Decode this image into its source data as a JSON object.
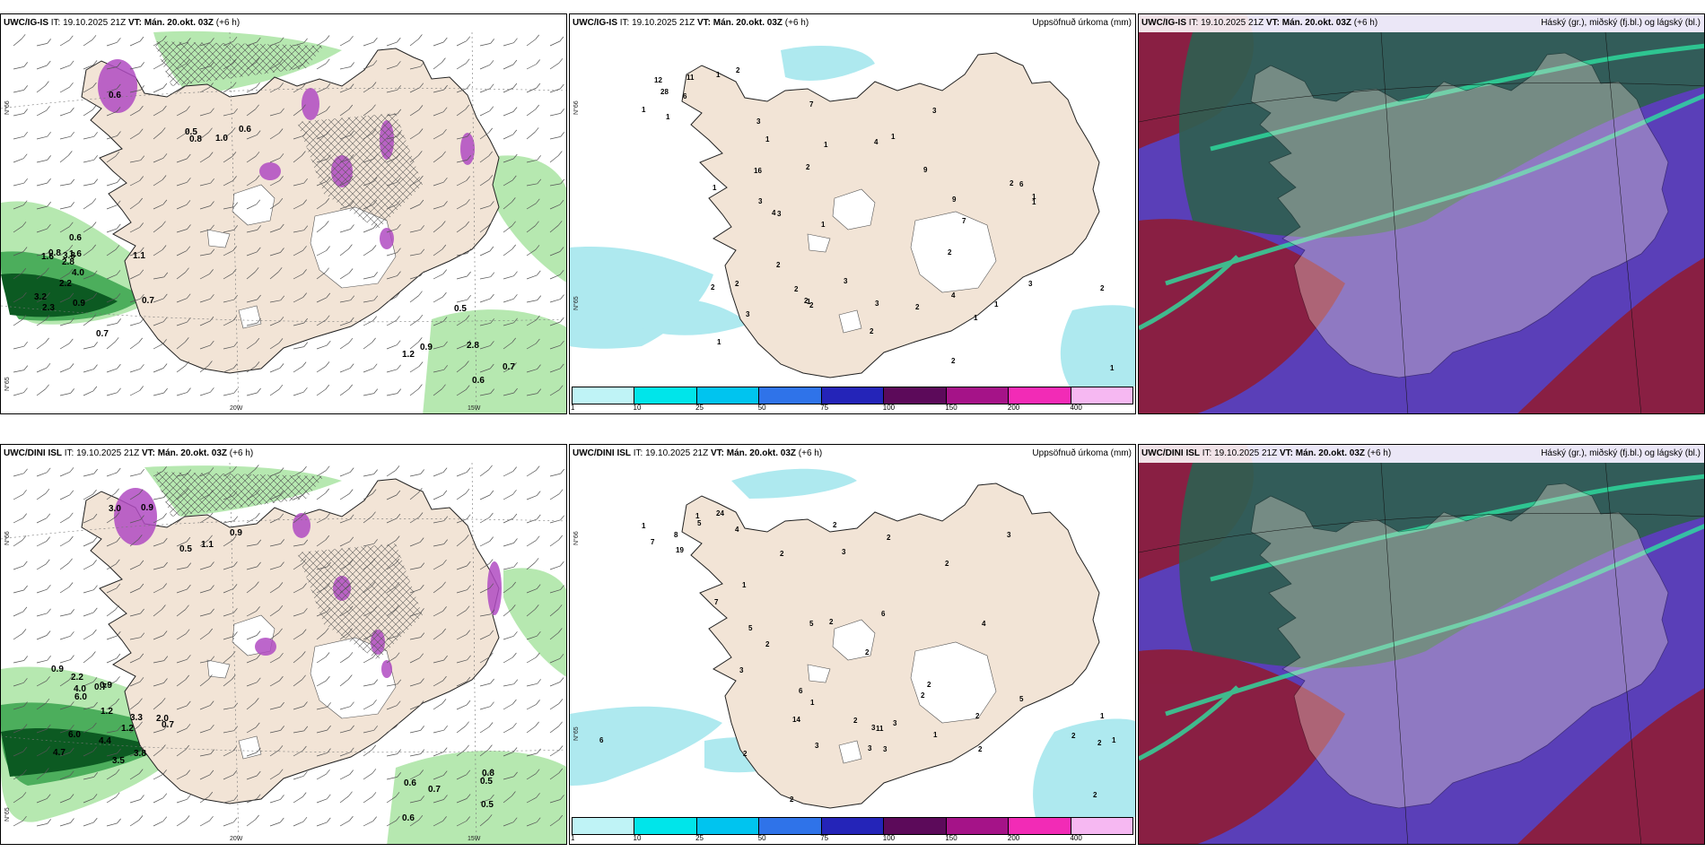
{
  "colors": {
    "land": "#f2e4d6",
    "precip_light": "#aee9ef",
    "precip_green_light": "#b6e8b0",
    "precip_green_mid": "#4cae5c",
    "precip_green_dark": "#0c5a22",
    "snow_purple": "#b04bc2",
    "cloud_high": "#2f5e50",
    "cloud_mid": "#5a3fb8",
    "cloud_low": "#8c1e3c"
  },
  "rows": [
    {
      "id": "ig",
      "panels": [
        {
          "kind": "wind",
          "model": "UWC/IG-IS",
          "it_label": "IT:",
          "it_value": "19.10.2025 21Z",
          "vt_label": "VT:",
          "vt_value": "Mán. 20.okt. 03Z",
          "lead": "(+6 h)",
          "right_title": "",
          "axis": {
            "lat1": "N°66",
            "lat2": "N°65",
            "lon1": "20W",
            "lon2": "15W"
          },
          "values": [
            "0.6",
            "0.8",
            "0.5",
            "0.6",
            "1.0",
            "2.3",
            "1.6",
            "4.0",
            "2.2",
            "1.6",
            "2.8",
            "3.2",
            "3.8",
            "1.1",
            "0.8",
            "0.6",
            "0.7",
            "0.9",
            "0.7",
            "0.5",
            "0.6",
            "2.8",
            "1.2",
            "0.7",
            "0.9"
          ]
        },
        {
          "kind": "precip",
          "model": "UWC/IG-IS",
          "it_label": "IT:",
          "it_value": "19.10.2025 21Z",
          "vt_label": "VT:",
          "vt_value": "Mán. 20.okt. 03Z",
          "lead": "(+6 h)",
          "right_title": "Uppsöfnuð úrkoma (mm)",
          "axis": {
            "lat1": "N°66",
            "lat2": "N°65"
          },
          "values": [
            "1",
            "1",
            "6",
            "28",
            "11",
            "12",
            "2",
            "1",
            "2",
            "3",
            "3",
            "3",
            "1",
            "1",
            "1",
            "2",
            "1",
            "4",
            "2",
            "4",
            "1",
            "7",
            "1",
            "2",
            "2",
            "3",
            "3",
            "3",
            "2",
            "2",
            "3",
            "6",
            "1",
            "3",
            "1",
            "1",
            "9",
            "16",
            "9",
            "7",
            "4",
            "2",
            "2",
            "2",
            "2",
            "1",
            "1",
            "2",
            "2",
            "1"
          ]
        },
        {
          "kind": "cloud",
          "model": "UWC/IG-IS",
          "it_label": "IT:",
          "it_value": "19.10.2025 21Z",
          "vt_label": "VT:",
          "vt_value": "Mán. 20.okt. 03Z",
          "lead": "(+6 h)",
          "right_title": "Háský (gr.), miðský (fj.bl.) og lágský (bl.)"
        }
      ]
    },
    {
      "id": "dini",
      "panels": [
        {
          "kind": "wind",
          "model": "UWC/DINI ISL",
          "it_label": "IT:",
          "it_value": "19.10.2025 21Z",
          "vt_label": "VT:",
          "vt_value": "Mán. 20.okt. 03Z",
          "lead": "(+6 h)",
          "right_title": "",
          "axis": {
            "lat1": "N°66",
            "lat2": "N°65",
            "lon1": "20W",
            "lon2": "15W"
          },
          "values": [
            "3.0",
            "0.9",
            "0.9",
            "0.5",
            "1.1",
            "2.2",
            "2.0",
            "4.4",
            "4.0",
            "6.0",
            "3.8",
            "4.7",
            "6.0",
            "1.2",
            "0.9",
            "3.5",
            "0.7",
            "3.3",
            "0.9",
            "1.2",
            "0.7",
            "0.5",
            "0.7",
            "0.6",
            "0.5",
            "0.8",
            "0.6"
          ]
        },
        {
          "kind": "precip",
          "model": "UWC/DINI ISL",
          "it_label": "IT:",
          "it_value": "19.10.2025 21Z",
          "vt_label": "VT:",
          "vt_value": "Mán. 20.okt. 03Z",
          "lead": "(+6 h)",
          "right_title": "Uppsöfnuð úrkoma (mm)",
          "axis": {
            "lat1": "N°66",
            "lat2": "N°65"
          },
          "values": [
            "1",
            "1",
            "7",
            "24",
            "19",
            "8",
            "5",
            "4",
            "4",
            "5",
            "2",
            "2",
            "2",
            "3",
            "2",
            "1",
            "2",
            "3",
            "2",
            "3",
            "5",
            "3",
            "2",
            "2",
            "2",
            "3",
            "2",
            "2",
            "3",
            "1",
            "14",
            "7",
            "11",
            "3",
            "6",
            "5",
            "3",
            "6",
            "6",
            "1",
            "1",
            "1",
            "2",
            "2",
            "2",
            "2",
            "2",
            "2"
          ]
        },
        {
          "kind": "cloud",
          "model": "UWC/DINI ISL",
          "it_label": "IT:",
          "it_value": "19.10.2025 21Z",
          "vt_label": "VT:",
          "vt_value": "Mán. 20.okt. 03Z",
          "lead": "(+6 h)",
          "right_title": "Háský (gr.), miðský (fj.bl.) og lágský (bl.)"
        }
      ]
    }
  ],
  "colorbar": {
    "ticks": [
      "1",
      "10",
      "25",
      "50",
      "75",
      "100",
      "150",
      "200",
      "400"
    ],
    "colors": [
      "#bff3f6",
      "#00e5ea",
      "#00c4ef",
      "#2f73e9",
      "#2424b8",
      "#5c0a5a",
      "#a51388",
      "#f22bb6",
      "#f6b8f2"
    ]
  }
}
